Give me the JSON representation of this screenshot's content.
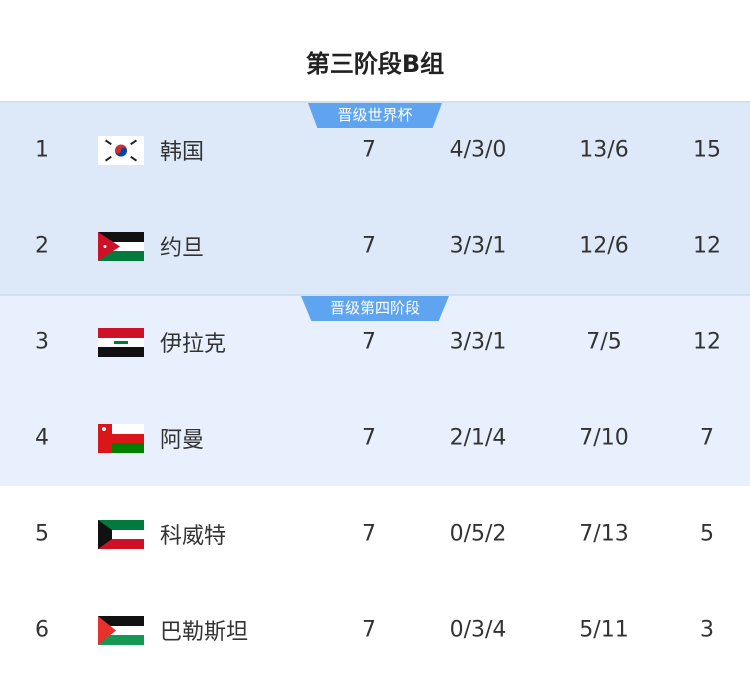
{
  "title": "第三阶段B组",
  "badges": {
    "world_cup": "晋级世界杯",
    "fourth_stage": "晋级第四阶段"
  },
  "colors": {
    "group1_bg": "#dde9f8",
    "group2_bg": "#e7f0fc",
    "badge": "#5fa4ee"
  },
  "rows": [
    {
      "rank": "1",
      "flag": "south-korea-flag",
      "name": "韩国",
      "played": "7",
      "wdl": "4/3/0",
      "goals": "13/6",
      "points": "15"
    },
    {
      "rank": "2",
      "flag": "jordan-flag",
      "name": "约旦",
      "played": "7",
      "wdl": "3/3/1",
      "goals": "12/6",
      "points": "12"
    },
    {
      "rank": "3",
      "flag": "iraq-flag",
      "name": "伊拉克",
      "played": "7",
      "wdl": "3/3/1",
      "goals": "7/5",
      "points": "12"
    },
    {
      "rank": "4",
      "flag": "oman-flag",
      "name": "阿曼",
      "played": "7",
      "wdl": "2/1/4",
      "goals": "7/10",
      "points": "7"
    },
    {
      "rank": "5",
      "flag": "kuwait-flag",
      "name": "科威特",
      "played": "7",
      "wdl": "0/5/2",
      "goals": "7/13",
      "points": "5"
    },
    {
      "rank": "6",
      "flag": "palestine-flag",
      "name": "巴勒斯坦",
      "played": "7",
      "wdl": "0/3/4",
      "goals": "5/11",
      "points": "3"
    }
  ]
}
